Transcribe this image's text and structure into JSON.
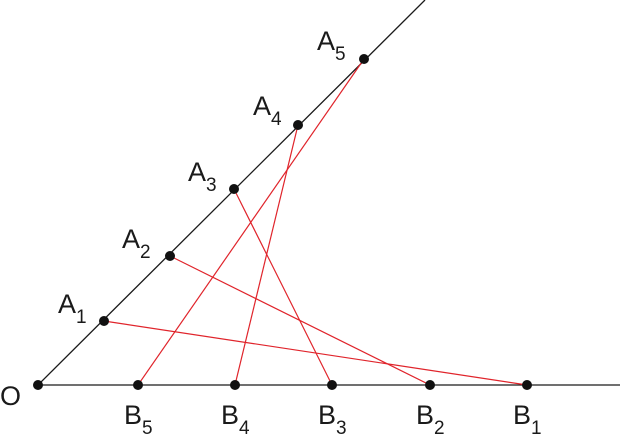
{
  "origin": "O",
  "a_points": [
    {
      "letter": "A",
      "sub": "1"
    },
    {
      "letter": "A",
      "sub": "2"
    },
    {
      "letter": "A",
      "sub": "3"
    },
    {
      "letter": "A",
      "sub": "4"
    },
    {
      "letter": "A",
      "sub": "5"
    }
  ],
  "b_points": [
    {
      "letter": "B",
      "sub": "1"
    },
    {
      "letter": "B",
      "sub": "2"
    },
    {
      "letter": "B",
      "sub": "3"
    },
    {
      "letter": "B",
      "sub": "4"
    },
    {
      "letter": "B",
      "sub": "5"
    }
  ]
}
